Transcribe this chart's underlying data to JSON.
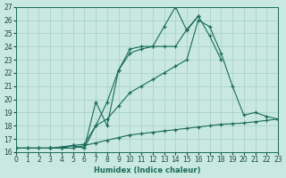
{
  "xlabel": "Humidex (Indice chaleur)",
  "line_color": "#1a6b5a",
  "bg_color": "#c8e8e0",
  "grid_color": "#a8cec8",
  "ylim": [
    16,
    27
  ],
  "xlim": [
    0,
    23
  ],
  "yticks": [
    16,
    17,
    18,
    19,
    20,
    21,
    22,
    23,
    24,
    25,
    26,
    27
  ],
  "xticks": [
    0,
    1,
    2,
    3,
    4,
    5,
    6,
    7,
    8,
    9,
    10,
    11,
    12,
    13,
    14,
    15,
    16,
    17,
    18,
    19,
    20,
    21,
    22,
    23
  ],
  "line1_x": [
    0,
    1,
    2,
    3,
    4,
    5,
    6,
    7,
    8,
    9,
    10,
    11,
    12,
    13,
    14,
    15,
    16,
    17,
    18,
    19,
    20,
    21,
    22,
    23
  ],
  "line1_y": [
    16.3,
    16.3,
    16.3,
    16.3,
    16.3,
    16.3,
    16.5,
    16.7,
    16.9,
    17.1,
    17.3,
    17.4,
    17.5,
    17.6,
    17.7,
    17.8,
    17.9,
    18.0,
    18.1,
    18.15,
    18.2,
    18.3,
    18.4,
    18.5
  ],
  "line2_x": [
    0,
    1,
    2,
    3,
    4,
    5,
    6,
    7,
    8,
    9,
    10,
    11,
    12,
    13,
    14,
    15,
    16,
    17,
    18,
    19,
    20,
    21,
    22,
    23
  ],
  "line2_y": [
    16.3,
    16.3,
    16.3,
    16.3,
    16.3,
    16.5,
    16.6,
    18.0,
    18.5,
    19.5,
    20.5,
    21.0,
    21.5,
    22.0,
    22.5,
    23.0,
    26.0,
    25.5,
    23.5,
    21.0,
    18.8,
    19.0,
    18.7,
    18.5
  ],
  "line3_x": [
    0,
    3,
    4,
    5,
    6,
    7,
    8,
    9,
    10,
    11,
    12,
    13,
    14,
    15,
    16,
    17,
    18
  ],
  "line3_y": [
    16.3,
    16.3,
    16.3,
    16.5,
    16.3,
    18.0,
    19.8,
    22.2,
    23.8,
    24.0,
    24.0,
    24.0,
    24.0,
    25.3,
    26.3,
    24.8,
    23.0
  ],
  "line4_x": [
    0,
    3,
    5,
    6,
    7,
    8,
    9,
    10,
    11,
    12,
    13,
    14,
    15,
    16
  ],
  "line4_y": [
    16.3,
    16.3,
    16.5,
    16.3,
    19.8,
    18.0,
    22.2,
    23.5,
    23.8,
    24.0,
    25.5,
    27.0,
    25.2,
    26.3
  ]
}
